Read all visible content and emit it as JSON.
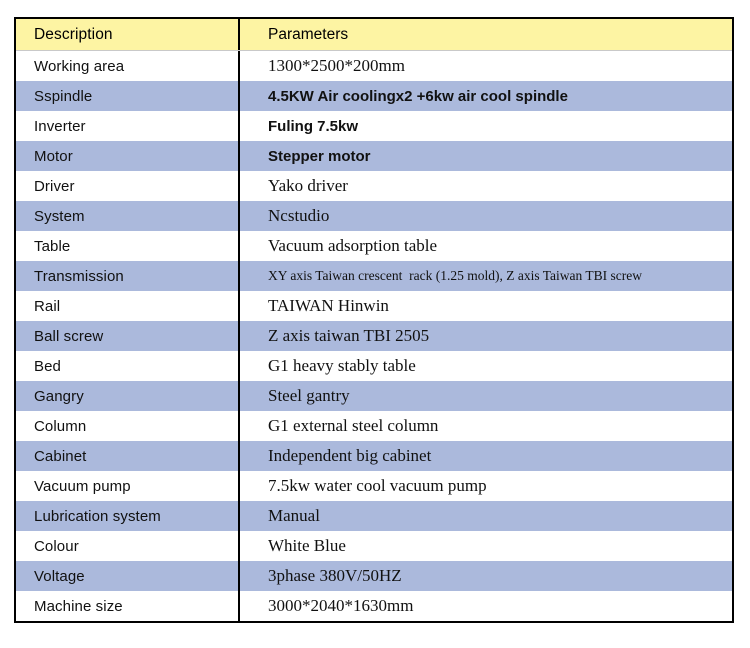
{
  "table": {
    "header": {
      "description": "Description",
      "parameters": "Parameters"
    },
    "rows": [
      {
        "desc": "Working area",
        "param": "1300*2500*200mm"
      },
      {
        "desc": "Sspindle",
        "param": "4.5KW Air coolingx2 +6kw air cool spindle"
      },
      {
        "desc": "Inverter",
        "param": "Fuling 7.5kw"
      },
      {
        "desc": "Motor",
        "param": "Stepper motor"
      },
      {
        "desc": "Driver",
        "param": "Yako driver"
      },
      {
        "desc": "System",
        "param": "Ncstudio"
      },
      {
        "desc": "Table",
        "param": "Vacuum adsorption table"
      },
      {
        "desc": "Transmission",
        "param": "XY axis Taiwan crescent  rack (1.25 mold), Z axis Taiwan TBI screw"
      },
      {
        "desc": "Rail",
        "param": "TAIWAN Hinwin"
      },
      {
        "desc": "Ball screw",
        "param": "Z axis taiwan TBI 2505"
      },
      {
        "desc": "Bed",
        "param": "G1 heavy stably table"
      },
      {
        "desc": "Gangry",
        "param": "Steel gantry"
      },
      {
        "desc": "Column",
        "param": "G1 external steel column"
      },
      {
        "desc": "Cabinet",
        "param": "Independent big cabinet"
      },
      {
        "desc": "Vacuum pump",
        "param": "7.5kw water cool vacuum pump"
      },
      {
        "desc": "Lubrication system",
        "param": "Manual"
      },
      {
        "desc": "Colour",
        "param": "White Blue"
      },
      {
        "desc": "Voltage",
        "param": "3phase 380V/50HZ"
      },
      {
        "desc": "Machine size",
        "param": "3000*2040*1630mm"
      }
    ],
    "colors": {
      "header_bg": "#fdf4a3",
      "alt_row_bg": "#abb9dc",
      "border": "#000000",
      "text": "#111111"
    }
  }
}
